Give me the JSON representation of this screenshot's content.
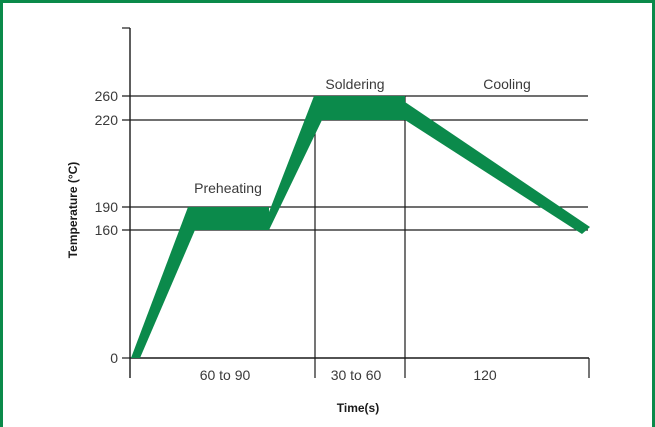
{
  "chart_data": {
    "type": "line",
    "xlabel": "Time(s)",
    "ylabel": "Temperature (°C)",
    "y_ticks": [
      0,
      160,
      190,
      220,
      260
    ],
    "ylim": [
      0,
      300
    ],
    "x_bands": [
      "60 to 90",
      "30 to 60",
      "120"
    ],
    "phases": [
      {
        "name": "Preheating",
        "temp_min": 160,
        "temp_max": 190
      },
      {
        "name": "Soldering",
        "temp_min": 220,
        "temp_max": 260
      },
      {
        "name": "Cooling"
      }
    ],
    "profile_color": "#0b8a4b",
    "frame_color": "#0a8a4a"
  }
}
